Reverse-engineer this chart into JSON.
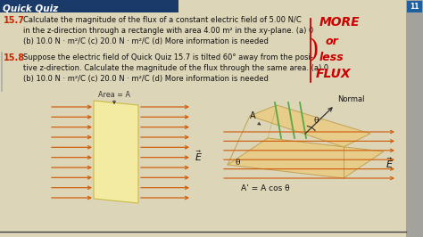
{
  "bg_color": "#ddd5b8",
  "header_bg": "#1a3a6a",
  "header_text": "Quick Quiz",
  "header_text_color": "#ffffff",
  "body_bg": "#ddd5b8",
  "title_color": "#cc2200",
  "body_text_color": "#111111",
  "annotation_color": "#cc0000",
  "q15_7_label": "15.7",
  "q15_7_text": "Calculate the magnitude of the flux of a constant electric field of 5.00 N/C\nin the z-direction through a rectangle with area 4.00 m² in the xy-plane. (a) 0\n(b) 10.0 N · m²/C (c) 20.0 N · m²/C (d) More information is needed",
  "q15_8_label": "15.8",
  "q15_8_text": "Suppose the electric field of Quick Quiz 15.7 is tilted 60° away from the posi-\ntive z-direction. Calculate the magnitude of the flux through the same area. (a) 0\n(b) 10.0 N · m²/C (c) 20.0 N · m²/C (d) More information is needed",
  "area_label": "Area = A",
  "normal_label": "Normal",
  "A_prime_label": "A’ = A cos θ",
  "A_label": "A",
  "theta_label": "θ",
  "theta2_label": "θ",
  "arrow_color": "#d06010",
  "panel_color1": "#f5eda0",
  "panel_color2": "#e8cc88",
  "green_line_color": "#55aa44",
  "sidebar_color": "#777777",
  "tab_number": "11"
}
